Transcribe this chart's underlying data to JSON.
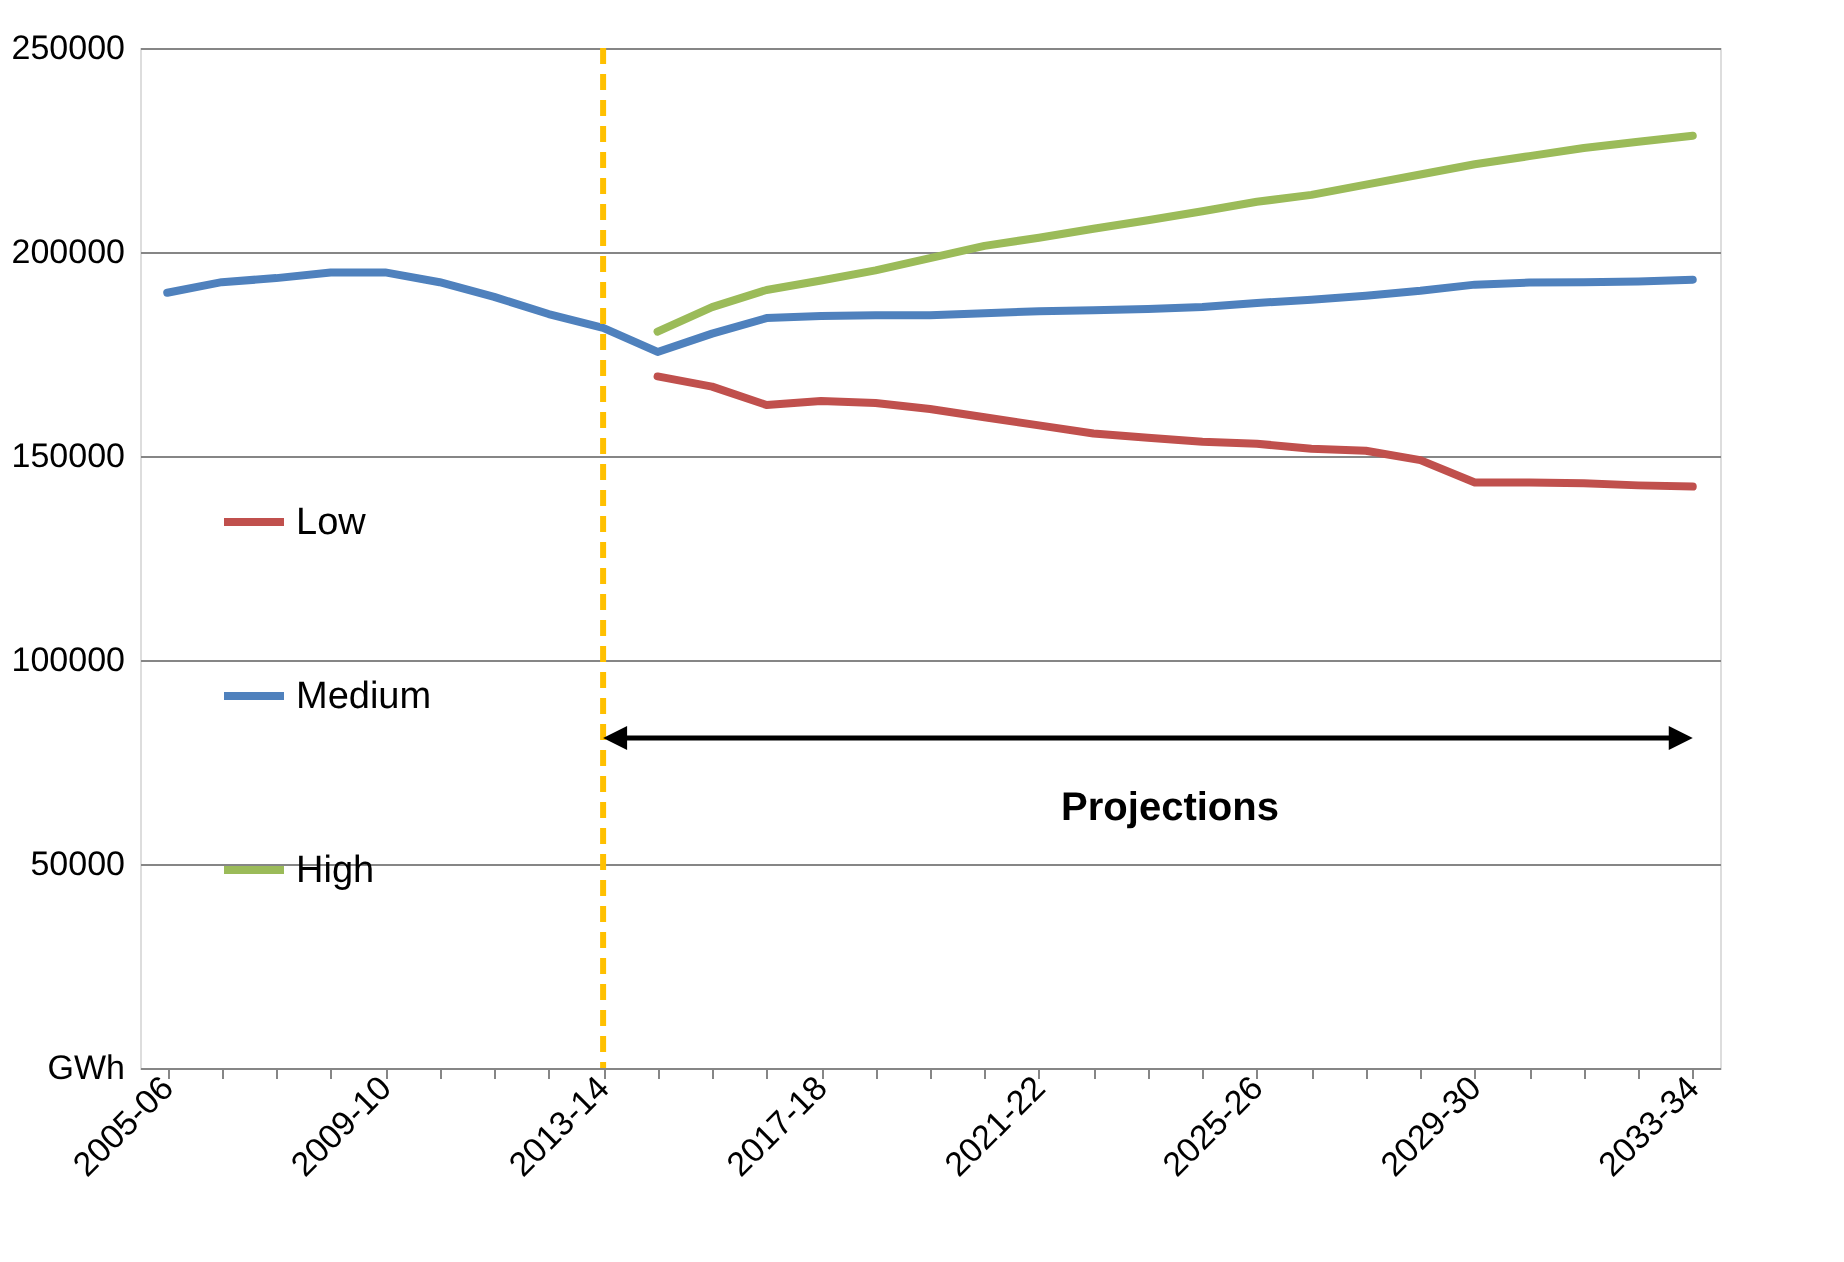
{
  "chart_data": {
    "type": "line",
    "categories": [
      "2005-06",
      null,
      null,
      null,
      "2009-10",
      null,
      null,
      null,
      "2013-14",
      null,
      null,
      null,
      "2017-18",
      null,
      null,
      null,
      "2021-22",
      null,
      null,
      null,
      "2025-26",
      null,
      null,
      null,
      "2029-30",
      null,
      null,
      null,
      "2033-34"
    ],
    "series": [
      {
        "name": "Low",
        "color": "#c0504d",
        "values": [
          null,
          null,
          null,
          null,
          null,
          null,
          null,
          null,
          null,
          169500,
          167000,
          162500,
          163500,
          163000,
          161500,
          159500,
          157500,
          155500,
          154500,
          153500,
          153000,
          151800,
          151300,
          149000,
          143500,
          143500,
          143300,
          142800,
          142500
        ]
      },
      {
        "name": "Medium",
        "color": "#4f81bd",
        "values": [
          190000,
          192600,
          193600,
          195000,
          195000,
          192600,
          189000,
          184800,
          181400,
          175500,
          180000,
          183800,
          184300,
          184500,
          184500,
          185000,
          185500,
          185700,
          186000,
          186500,
          187500,
          188300,
          189300,
          190500,
          192000,
          192500,
          192600,
          192800,
          193200
        ]
      },
      {
        "name": "High",
        "color": "#9bbb59",
        "values": [
          null,
          null,
          null,
          null,
          null,
          null,
          null,
          null,
          null,
          180500,
          186500,
          190700,
          193000,
          195500,
          198500,
          201500,
          203500,
          205700,
          207800,
          210000,
          212300,
          214000,
          216500,
          219000,
          221500,
          223500,
          225500,
          227000,
          228500
        ]
      }
    ],
    "ylim": [
      0,
      250000
    ],
    "yticks": [
      {
        "value": 0,
        "label": "GWh"
      },
      50000,
      100000,
      150000,
      200000,
      250000
    ],
    "grid": "y",
    "legend": "left",
    "line_style": "solid",
    "marker": "none",
    "ref_lines": [
      {
        "axis": "x",
        "value": "2013-14",
        "color": "#ffc000",
        "line_style": "dashed"
      }
    ],
    "annotations": [
      "Projections"
    ]
  }
}
